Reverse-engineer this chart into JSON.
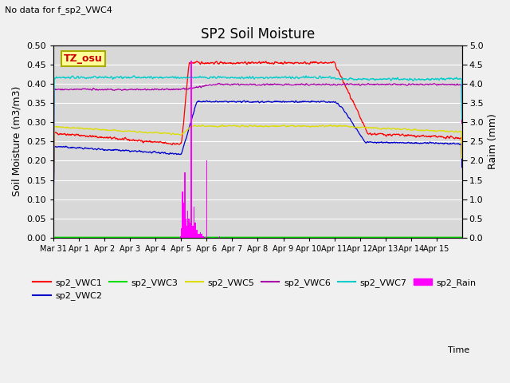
{
  "title": "SP2 Soil Moisture",
  "subtitle": "No data for f_sp2_VWC4",
  "xlabel": "Time",
  "ylabel_left": "Soil Moisture (m3/m3)",
  "ylabel_right": "Raim (mm)",
  "annotation": "TZ_osu",
  "ylim_left": [
    0.0,
    0.5
  ],
  "ylim_right": [
    0.0,
    5.0
  ],
  "yticks_left": [
    0.0,
    0.05,
    0.1,
    0.15,
    0.2,
    0.25,
    0.3,
    0.35,
    0.4,
    0.45,
    0.5
  ],
  "yticks_right": [
    0.0,
    0.5,
    1.0,
    1.5,
    2.0,
    2.5,
    3.0,
    3.5,
    4.0,
    4.5,
    5.0
  ],
  "colors": {
    "sp2_VWC1": "#ff0000",
    "sp2_VWC2": "#0000cc",
    "sp2_VWC3": "#00dd00",
    "sp2_VWC5": "#dddd00",
    "sp2_VWC6": "#aa00aa",
    "sp2_VWC7": "#00cccc",
    "sp2_Rain": "#ff00ff"
  },
  "bg_color": "#d8d8d8",
  "fig_bg_color": "#f0f0f0",
  "grid_color": "#ffffff",
  "n_points": 1200,
  "spike_times": [
    4.97,
    5.0,
    5.03,
    5.06,
    5.09,
    5.12,
    5.15,
    5.18,
    5.21,
    5.25,
    5.3,
    5.35,
    5.4,
    5.45,
    5.5,
    5.55,
    5.6,
    5.62,
    5.65,
    5.68,
    5.7,
    5.75,
    5.8,
    5.85,
    5.9,
    6.0,
    6.5
  ],
  "spike_vals": [
    0.05,
    0.25,
    0.4,
    1.2,
    0.6,
    0.9,
    1.7,
    0.5,
    0.3,
    0.7,
    0.5,
    0.4,
    4.6,
    0.3,
    0.8,
    0.4,
    0.2,
    0.15,
    0.1,
    0.08,
    0.1,
    0.15,
    0.1,
    0.05,
    0.02,
    2.0,
    0.05
  ]
}
